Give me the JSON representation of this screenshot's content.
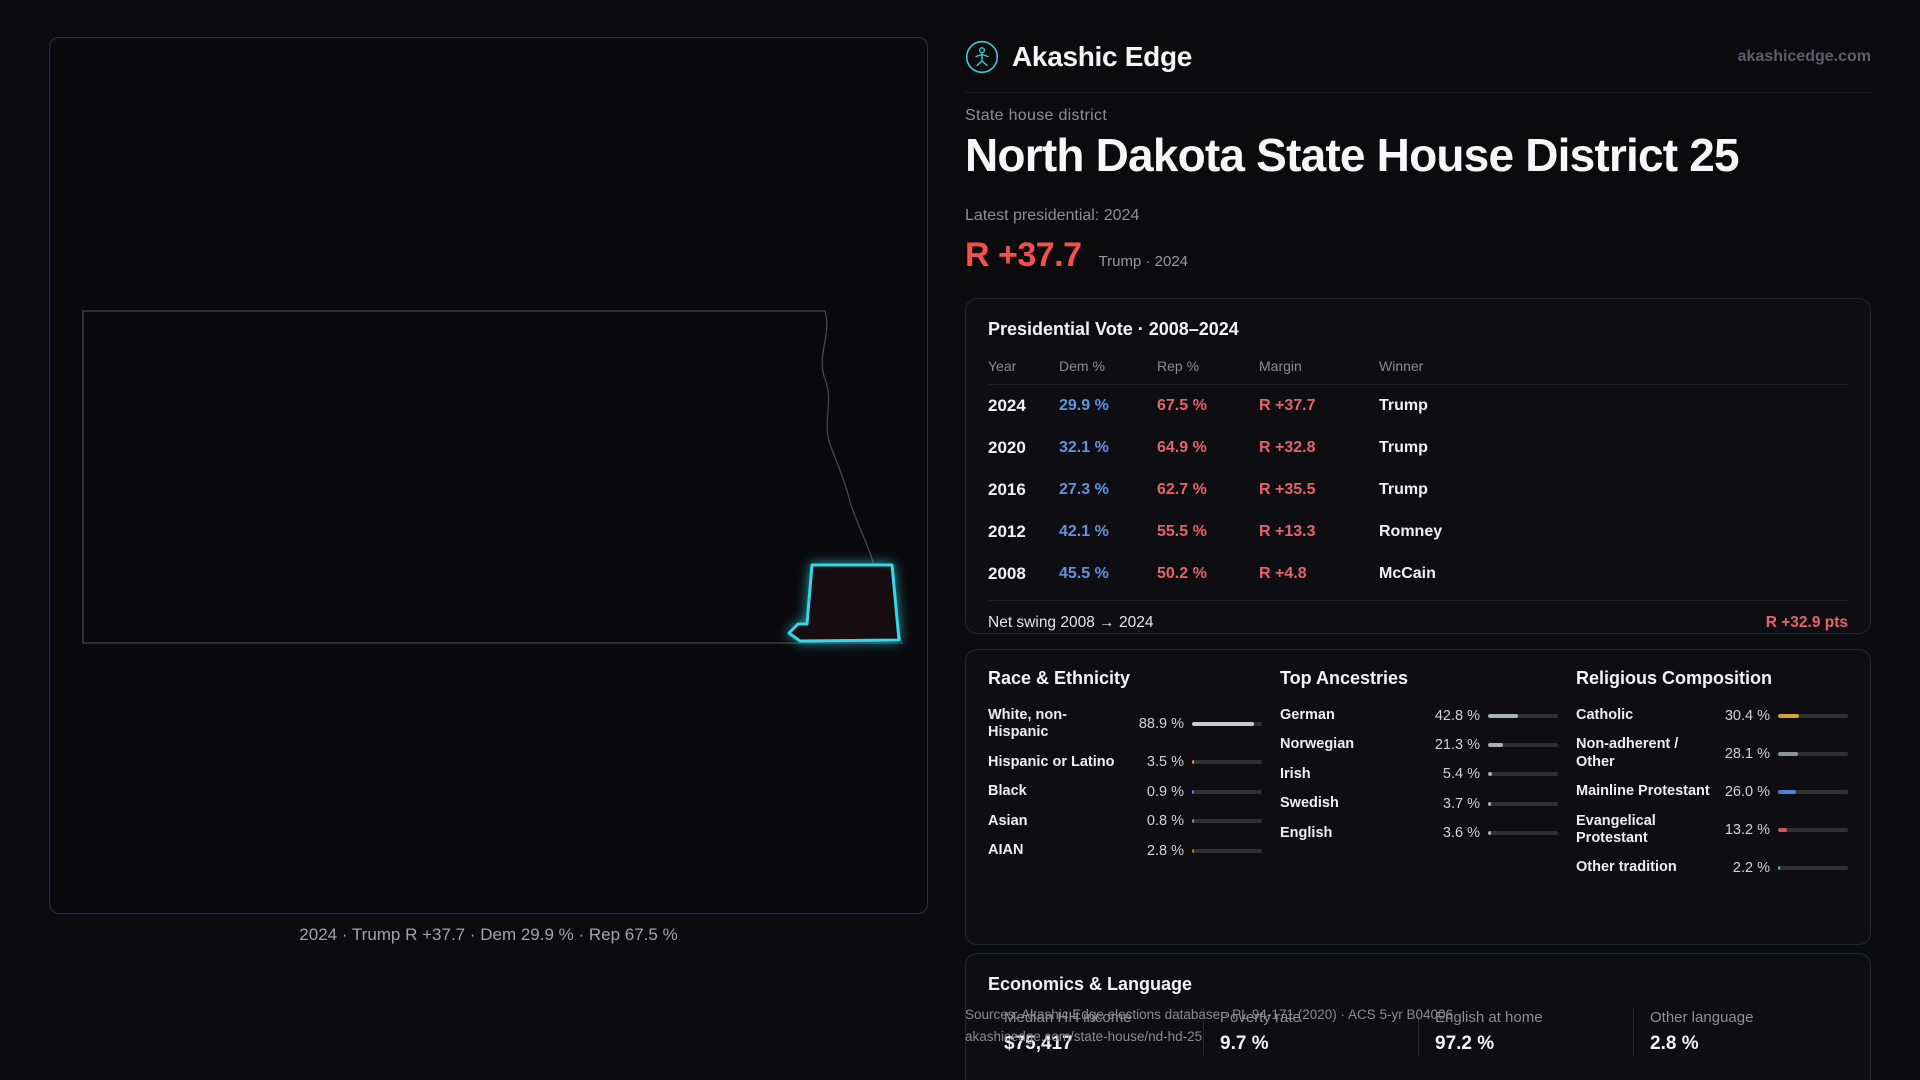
{
  "brand": {
    "name": "Akashic Edge",
    "site": "akashicedge.com"
  },
  "hero": {
    "kicker": "State house district",
    "title": "North Dakota State House District 25",
    "latest_label": "Latest presidential: 2024",
    "margin_value": "R +37.7",
    "margin_context": "Trump · 2024"
  },
  "map": {
    "caption": "2024 · Trump R +37.7 · Dem 29.9 % · Rep 67.5 %"
  },
  "presidential": {
    "title": "Presidential Vote · 2008–2024",
    "columns": [
      "Year",
      "Dem %",
      "Rep %",
      "Margin",
      "Winner"
    ],
    "rows": [
      {
        "year": "2024",
        "dem": "29.9 %",
        "rep": "67.5 %",
        "margin": "R +37.7",
        "winner": "Trump"
      },
      {
        "year": "2020",
        "dem": "32.1 %",
        "rep": "64.9 %",
        "margin": "R +32.8",
        "winner": "Trump"
      },
      {
        "year": "2016",
        "dem": "27.3 %",
        "rep": "62.7 %",
        "margin": "R +35.5",
        "winner": "Trump"
      },
      {
        "year": "2012",
        "dem": "42.1 %",
        "rep": "55.5 %",
        "margin": "R +13.3",
        "winner": "Romney"
      },
      {
        "year": "2008",
        "dem": "45.5 %",
        "rep": "50.2 %",
        "margin": "R +4.8",
        "winner": "McCain"
      }
    ],
    "net_swing_label": "Net swing 2008 → 2024",
    "net_swing_value": "R +32.9 pts"
  },
  "race": {
    "title": "Race & Ethnicity",
    "rows": [
      {
        "label": "White, non-Hispanic",
        "value": "88.9 %",
        "pct": 88.9,
        "color": "#c6cbd2"
      },
      {
        "label": "Hispanic or Latino",
        "value": "3.5 %",
        "pct": 3.5,
        "color": "#e29b3b"
      },
      {
        "label": "Black",
        "value": "0.9 %",
        "pct": 0.9,
        "color": "#8f7ae0"
      },
      {
        "label": "Asian",
        "value": "0.8 %",
        "pct": 0.8,
        "color": "#45b98c"
      },
      {
        "label": "AIAN",
        "value": "2.8 %",
        "pct": 2.8,
        "color": "#df6a44"
      }
    ]
  },
  "ancestries": {
    "title": "Top Ancestries",
    "rows": [
      {
        "label": "German",
        "value": "42.8 %",
        "pct": 42.8,
        "color": "#aab0b8"
      },
      {
        "label": "Norwegian",
        "value": "21.3 %",
        "pct": 21.3,
        "color": "#aab0b8"
      },
      {
        "label": "Irish",
        "value": "5.4 %",
        "pct": 5.4,
        "color": "#aab0b8"
      },
      {
        "label": "Swedish",
        "value": "3.7 %",
        "pct": 3.7,
        "color": "#aab0b8"
      },
      {
        "label": "English",
        "value": "3.6 %",
        "pct": 3.6,
        "color": "#aab0b8"
      }
    ]
  },
  "religion": {
    "title": "Religious Composition",
    "rows": [
      {
        "label": "Catholic",
        "value": "30.4 %",
        "pct": 30.4,
        "color": "#d4a72c"
      },
      {
        "label": "Non-adherent / Other",
        "value": "28.1 %",
        "pct": 28.1,
        "color": "#8d939b"
      },
      {
        "label": "Mainline Protestant",
        "value": "26.0 %",
        "pct": 26.0,
        "color": "#4d82d8"
      },
      {
        "label": "Evangelical Protestant",
        "value": "13.2 %",
        "pct": 13.2,
        "color": "#d4555a"
      },
      {
        "label": "Other tradition",
        "value": "2.2 %",
        "pct": 2.2,
        "color": "#38c2cc"
      }
    ]
  },
  "economics": {
    "title": "Economics & Language",
    "stats": [
      {
        "label": "Median HH income",
        "value": "$75,417"
      },
      {
        "label": "Poverty rate",
        "value": "9.7 %"
      },
      {
        "label": "English at home",
        "value": "97.2 %"
      },
      {
        "label": "Other language",
        "value": "2.8 %"
      }
    ]
  },
  "sources": {
    "line1": "Sources: Akashic Edge elections database · PL 94-171 (2020) · ACS 5-yr B04006",
    "line2": "akashicedge.com/state-house/nd-hd-25"
  }
}
